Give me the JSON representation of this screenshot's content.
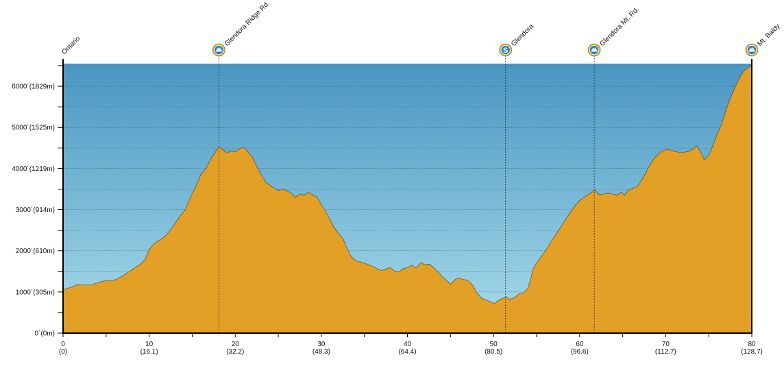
{
  "colors": {
    "sky_top": "#4a96c2",
    "sky_bottom": "#a9dcea",
    "terrain_fill": "#e2a027",
    "terrain_stroke": "#5a4a2a",
    "axis": "#000000",
    "grid": "#2f4f5f",
    "badge_ring": "#d9a521",
    "badge_fill": "#2f7fc0"
  },
  "chart_data": {
    "type": "area",
    "x_unit": "mi",
    "y_unit": "ft",
    "xlim": [
      0,
      80
    ],
    "ylim": [
      0,
      6550
    ],
    "grid": true,
    "y_ticks": [
      {
        "value": 0,
        "label": "0´(0m)"
      },
      {
        "value": 1000,
        "label": "1000´(305m)"
      },
      {
        "value": 2000,
        "label": "2000´(610m)"
      },
      {
        "value": 3000,
        "label": "3000´(914m)"
      },
      {
        "value": 4000,
        "label": "4000´(1219m)"
      },
      {
        "value": 5000,
        "label": "5000´(1525m)"
      },
      {
        "value": 6000,
        "label": "6000´(1829m)"
      }
    ],
    "x_ticks": [
      {
        "value": 0,
        "label": "0",
        "sub": "(0)"
      },
      {
        "value": 10,
        "label": "10",
        "sub": "(16.1)"
      },
      {
        "value": 20,
        "label": "20",
        "sub": "(32.2)"
      },
      {
        "value": 30,
        "label": "30",
        "sub": "(48.3)"
      },
      {
        "value": 40,
        "label": "40",
        "sub": "(64.4)"
      },
      {
        "value": 50,
        "label": "50",
        "sub": "(80.5)"
      },
      {
        "value": 60,
        "label": "60",
        "sub": "(96.6)"
      },
      {
        "value": 70,
        "label": "70",
        "sub": "(112.7)"
      },
      {
        "value": 80,
        "label": "80",
        "sub": "(128.7)"
      }
    ],
    "waypoints": [
      {
        "x": 0,
        "label": "Ontario",
        "icon": "none"
      },
      {
        "x": 18.1,
        "label": "Glendora Ridge Rd.",
        "icon": "summit-icon"
      },
      {
        "x": 51.4,
        "label": "Glendora",
        "icon": "services-icon",
        "icon_text": "S"
      },
      {
        "x": 61.7,
        "label": "Glendora Mt. Rd.",
        "icon": "summit-icon"
      },
      {
        "x": 80,
        "label": "Mt. Baldy",
        "icon": "summit-icon"
      }
    ],
    "profile": [
      [
        0,
        1050
      ],
      [
        1,
        1120
      ],
      [
        1.7,
        1180
      ],
      [
        2.5,
        1170
      ],
      [
        3.3,
        1175
      ],
      [
        4,
        1220
      ],
      [
        4.6,
        1260
      ],
      [
        5.5,
        1280
      ],
      [
        6,
        1290
      ],
      [
        7,
        1400
      ],
      [
        8,
        1540
      ],
      [
        9,
        1680
      ],
      [
        9.5,
        1780
      ],
      [
        10,
        2030
      ],
      [
        10.7,
        2200
      ],
      [
        11.3,
        2270
      ],
      [
        12,
        2380
      ],
      [
        12.8,
        2600
      ],
      [
        13.5,
        2820
      ],
      [
        14.2,
        3000
      ],
      [
        14.8,
        3300
      ],
      [
        15.4,
        3550
      ],
      [
        16,
        3850
      ],
      [
        16.6,
        4000
      ],
      [
        17.2,
        4250
      ],
      [
        17.8,
        4430
      ],
      [
        18.1,
        4540
      ],
      [
        18.6,
        4450
      ],
      [
        19,
        4380
      ],
      [
        19.6,
        4430
      ],
      [
        20,
        4400
      ],
      [
        20.5,
        4480
      ],
      [
        21,
        4520
      ],
      [
        21.5,
        4400
      ],
      [
        22,
        4270
      ],
      [
        22.5,
        4050
      ],
      [
        23,
        3850
      ],
      [
        23.6,
        3650
      ],
      [
        24.2,
        3570
      ],
      [
        25,
        3460
      ],
      [
        25.5,
        3500
      ],
      [
        26,
        3460
      ],
      [
        26.5,
        3400
      ],
      [
        27,
        3300
      ],
      [
        27.5,
        3380
      ],
      [
        28,
        3350
      ],
      [
        28.5,
        3420
      ],
      [
        29,
        3360
      ],
      [
        29.5,
        3300
      ],
      [
        30,
        3120
      ],
      [
        30.5,
        2950
      ],
      [
        31,
        2760
      ],
      [
        31.5,
        2560
      ],
      [
        32,
        2420
      ],
      [
        32.5,
        2300
      ],
      [
        33,
        2050
      ],
      [
        33.5,
        1850
      ],
      [
        34,
        1760
      ],
      [
        35,
        1700
      ],
      [
        36,
        1620
      ],
      [
        36.5,
        1560
      ],
      [
        37,
        1520
      ],
      [
        37.5,
        1560
      ],
      [
        38,
        1590
      ],
      [
        38.5,
        1510
      ],
      [
        39,
        1480
      ],
      [
        39.5,
        1570
      ],
      [
        40,
        1590
      ],
      [
        40.5,
        1650
      ],
      [
        41,
        1580
      ],
      [
        41.6,
        1720
      ],
      [
        42,
        1660
      ],
      [
        42.6,
        1670
      ],
      [
        43.3,
        1540
      ],
      [
        44,
        1380
      ],
      [
        44.6,
        1270
      ],
      [
        45,
        1190
      ],
      [
        45.6,
        1310
      ],
      [
        46,
        1340
      ],
      [
        46.5,
        1300
      ],
      [
        47,
        1290
      ],
      [
        47.6,
        1160
      ],
      [
        48,
        1000
      ],
      [
        48.6,
        850
      ],
      [
        49.2,
        800
      ],
      [
        49.7,
        760
      ],
      [
        50.1,
        710
      ],
      [
        50.5,
        790
      ],
      [
        51,
        840
      ],
      [
        51.5,
        880
      ],
      [
        51.9,
        820
      ],
      [
        52.4,
        860
      ],
      [
        53,
        960
      ],
      [
        53.5,
        980
      ],
      [
        54,
        1100
      ],
      [
        54.3,
        1300
      ],
      [
        54.6,
        1560
      ],
      [
        55,
        1700
      ],
      [
        55.5,
        1850
      ],
      [
        56,
        1990
      ],
      [
        56.5,
        2160
      ],
      [
        57,
        2320
      ],
      [
        57.5,
        2480
      ],
      [
        58,
        2640
      ],
      [
        58.5,
        2800
      ],
      [
        59,
        2960
      ],
      [
        59.5,
        3100
      ],
      [
        60,
        3220
      ],
      [
        60.5,
        3300
      ],
      [
        61,
        3360
      ],
      [
        61.4,
        3430
      ],
      [
        61.8,
        3470
      ],
      [
        62.3,
        3360
      ],
      [
        62.8,
        3380
      ],
      [
        63.3,
        3410
      ],
      [
        63.8,
        3380
      ],
      [
        64.3,
        3350
      ],
      [
        64.8,
        3420
      ],
      [
        65.2,
        3350
      ],
      [
        65.7,
        3480
      ],
      [
        66.2,
        3520
      ],
      [
        66.7,
        3560
      ],
      [
        67.2,
        3720
      ],
      [
        67.7,
        3900
      ],
      [
        68.2,
        4100
      ],
      [
        68.7,
        4250
      ],
      [
        69.2,
        4360
      ],
      [
        69.7,
        4440
      ],
      [
        70.2,
        4470
      ],
      [
        70.7,
        4430
      ],
      [
        71.2,
        4410
      ],
      [
        71.7,
        4380
      ],
      [
        72.2,
        4400
      ],
      [
        72.7,
        4420
      ],
      [
        73.2,
        4470
      ],
      [
        73.6,
        4560
      ],
      [
        74,
        4420
      ],
      [
        74.5,
        4210
      ],
      [
        75,
        4320
      ],
      [
        75.5,
        4560
      ],
      [
        76,
        4850
      ],
      [
        76.5,
        5080
      ],
      [
        77,
        5420
      ],
      [
        77.5,
        5700
      ],
      [
        78,
        5950
      ],
      [
        78.5,
        6170
      ],
      [
        79,
        6350
      ],
      [
        79.4,
        6430
      ],
      [
        79.7,
        6470
      ],
      [
        80,
        6500
      ]
    ]
  }
}
